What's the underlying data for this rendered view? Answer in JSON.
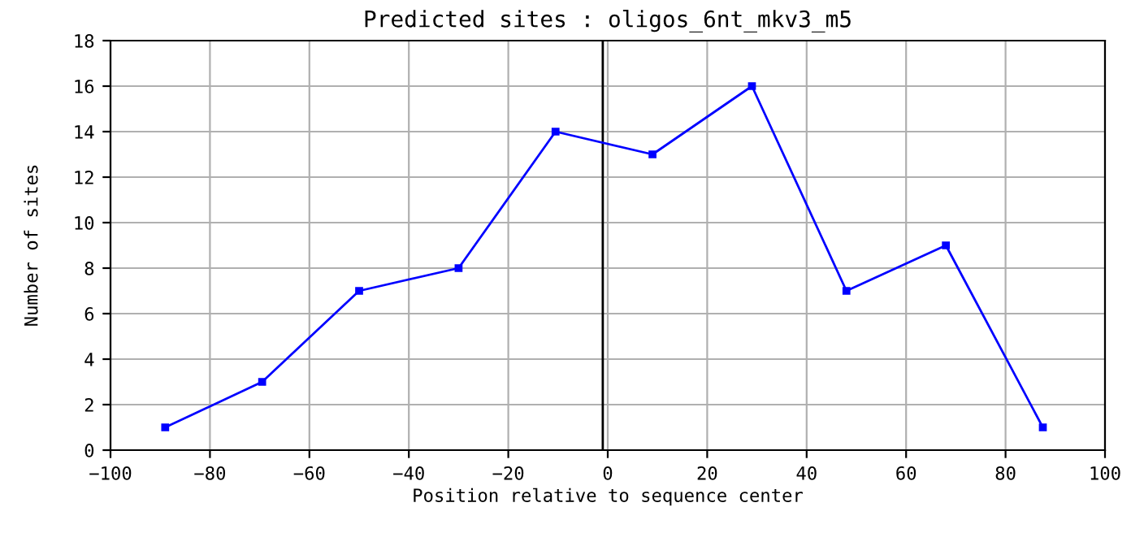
{
  "chart_data": {
    "type": "line",
    "title": "Predicted sites : oligos_6nt_mkv3_m5",
    "xlabel": "Position relative to sequence center",
    "ylabel": "Number of sites",
    "x": [
      -89,
      -69.5,
      -50,
      -30,
      -10.5,
      9,
      29,
      48,
      68,
      87.5
    ],
    "series": [
      {
        "color": "#0000ff",
        "values": [
          1,
          3,
          7,
          8,
          14,
          13,
          16,
          7,
          9,
          1
        ]
      }
    ],
    "xlim": [
      -100,
      100
    ],
    "xticks": [
      -100,
      -80,
      -60,
      -40,
      -20,
      0,
      20,
      40,
      60,
      80,
      100
    ],
    "ylim": [
      0,
      18
    ],
    "yticks": [
      0,
      2,
      4,
      6,
      8,
      10,
      12,
      14,
      16,
      18
    ],
    "ref_lines": [
      {
        "axis": "x",
        "value": -1,
        "color": "#000000"
      }
    ],
    "grid": true,
    "marker": "square",
    "line_style": "solid"
  }
}
